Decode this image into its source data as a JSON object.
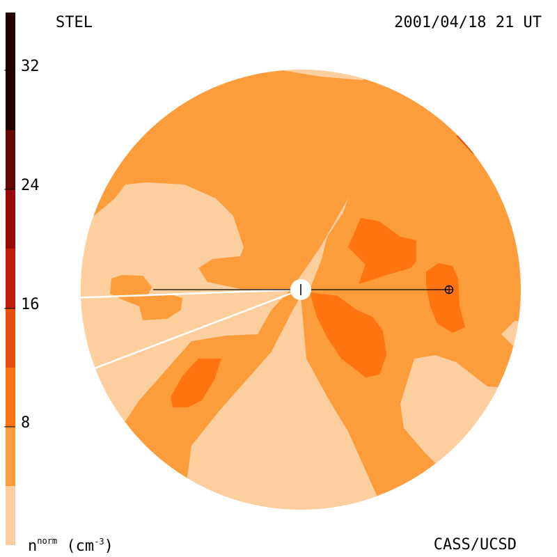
{
  "header": {
    "left_label": "STEL",
    "right_label": "2001/04/18 21 UT"
  },
  "footer": {
    "right_label": "CASS/UCSD",
    "unit_n": "n",
    "unit_sup": "norm",
    "unit_paren_open": "(cm",
    "unit_exp": "-3",
    "unit_paren_close": ")"
  },
  "colorbar": {
    "ticks": [
      "8",
      "16",
      "24",
      "32"
    ],
    "colors": [
      "#fdcf9f",
      "#fd9c3b",
      "#fd7410",
      "#e8500c",
      "#c41a0a",
      "#960909",
      "#650707",
      "#230000"
    ]
  },
  "palette": {
    "level0": "#fdcf9f",
    "level1": "#fd9c3b",
    "level2": "#fd7410",
    "level3": "#e8500c"
  }
}
